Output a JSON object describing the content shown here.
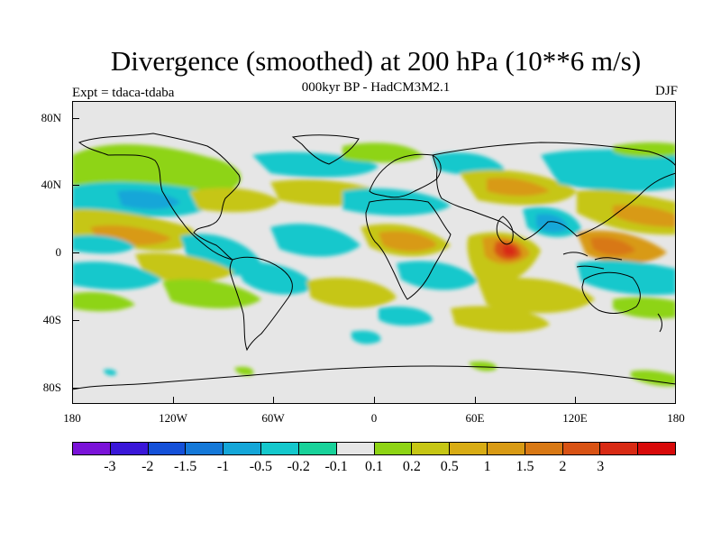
{
  "title": "Divergence (smoothed) at 200 hPa (10**6 m/s)",
  "subtitle": "000kyr BP - HadCM3M2.1",
  "experiment": "Expt = tdaca-tdaba",
  "season": "DJF",
  "lat_labels": [
    "80N",
    "40N",
    "0",
    "40S",
    "80S"
  ],
  "lon_labels": [
    "180",
    "120W",
    "60W",
    "0",
    "60E",
    "120E",
    "180"
  ],
  "colorbar": {
    "colors": [
      "#7a13d8",
      "#3a17d8",
      "#1450d8",
      "#1478d8",
      "#14a6d8",
      "#14c8cc",
      "#18d29a",
      "#e6e6e6",
      "#8ed414",
      "#c6c614",
      "#d8ac14",
      "#d89a14",
      "#d87814",
      "#d85214",
      "#d82a14",
      "#d80a0a"
    ],
    "labels": [
      "-3",
      "-2",
      "-1.5",
      "-1",
      "-0.5",
      "-0.2",
      "-0.1",
      "0.1",
      "0.2",
      "0.5",
      "1",
      "1.5",
      "2",
      "3"
    ]
  }
}
